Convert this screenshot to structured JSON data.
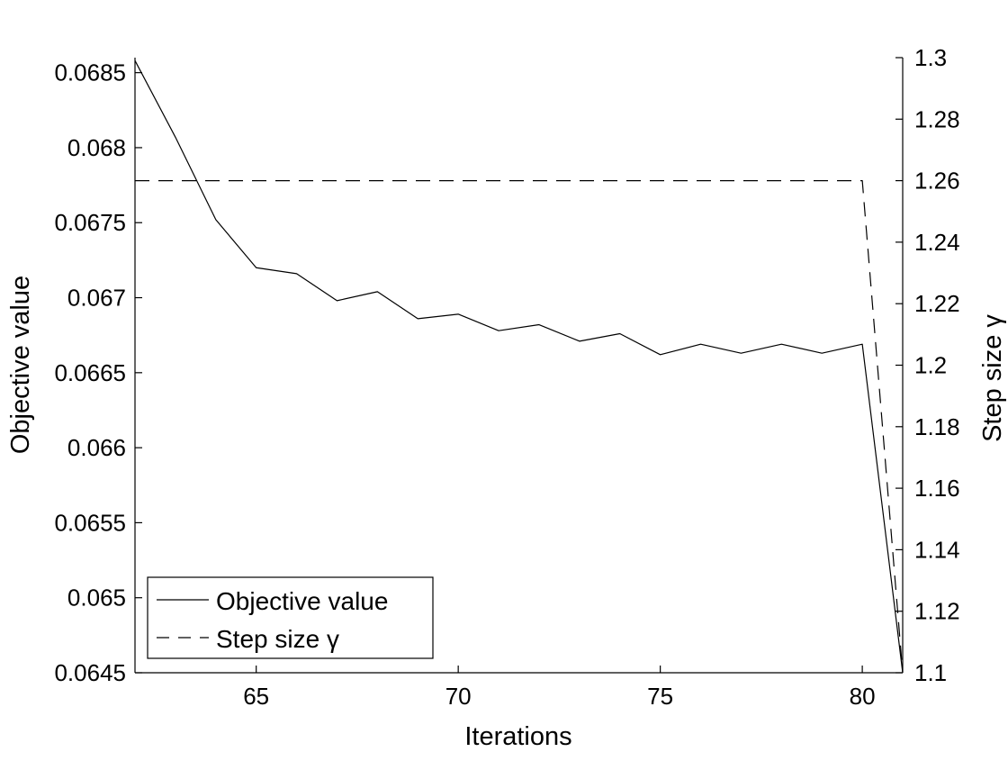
{
  "chart_data": {
    "type": "line",
    "xlabel": "Iterations",
    "ylabel_left": "Objective value",
    "ylabel_right": "Step size γ",
    "xlim": [
      62,
      81
    ],
    "ylim_left": [
      0.0645,
      0.0686
    ],
    "ylim_right": [
      1.1,
      1.3
    ],
    "x_ticks": [
      65,
      70,
      75,
      80
    ],
    "y_left_ticks": [
      0.0645,
      0.065,
      0.0655,
      0.066,
      0.0665,
      0.067,
      0.0675,
      0.068,
      0.0685
    ],
    "y_right_ticks": [
      1.1,
      1.12,
      1.14,
      1.16,
      1.18,
      1.2,
      1.22,
      1.24,
      1.26,
      1.28,
      1.3
    ],
    "x_tick_labels": [
      "65",
      "70",
      "75",
      "80"
    ],
    "y_left_tick_labels": [
      "0.0645",
      "0.065",
      "0.0655",
      "0.066",
      "0.0665",
      "0.067",
      "0.0675",
      "0.068",
      "0.0685"
    ],
    "y_right_tick_labels": [
      "1.1",
      "1.12",
      "1.14",
      "1.16",
      "1.18",
      "1.2",
      "1.22",
      "1.24",
      "1.26",
      "1.28",
      "1.3"
    ],
    "grid": false,
    "legend_position": "bottom-left",
    "legend": [
      "Objective value",
      "Step size γ"
    ],
    "series": [
      {
        "name": "Objective value",
        "axis": "left",
        "style": "solid",
        "color": "#000000",
        "x": [
          62,
          63,
          64,
          65,
          66,
          67,
          68,
          69,
          70,
          71,
          72,
          73,
          74,
          75,
          76,
          77,
          78,
          79,
          80,
          81
        ],
        "y": [
          0.06858,
          0.06807,
          0.06752,
          0.0672,
          0.06716,
          0.06698,
          0.06704,
          0.06686,
          0.06689,
          0.06678,
          0.06682,
          0.06671,
          0.06676,
          0.06662,
          0.06669,
          0.06663,
          0.06669,
          0.06663,
          0.06669,
          0.0645
        ]
      },
      {
        "name": "Step size γ",
        "axis": "right",
        "style": "dashed",
        "color": "#000000",
        "x": [
          62,
          80,
          81
        ],
        "y": [
          1.26,
          1.26,
          1.1
        ]
      }
    ]
  }
}
